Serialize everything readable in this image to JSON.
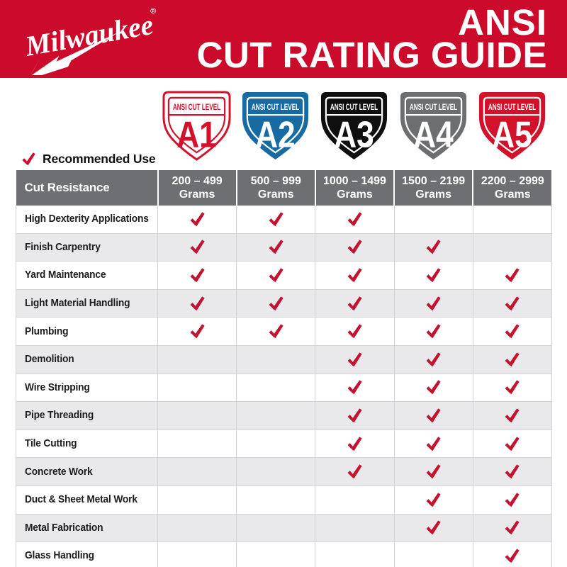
{
  "banner": {
    "brand": "Milwaukee",
    "registered_mark": "®",
    "title_line1": "ANSI",
    "title_line2": "CUT RATING GUIDE"
  },
  "shields": [
    {
      "level": "A1",
      "band": "ANSI CUT LEVEL",
      "style": "outline",
      "color": "#d2112b"
    },
    {
      "level": "A2",
      "band": "ANSI CUT LEVEL",
      "style": "filled",
      "color": "#186ba2"
    },
    {
      "level": "A3",
      "band": "ANSI CUT LEVEL",
      "style": "filled",
      "color": "#0f0f10"
    },
    {
      "level": "A4",
      "band": "ANSI CUT LEVEL",
      "style": "filled",
      "color": "#6d6e71"
    },
    {
      "level": "A5",
      "band": "ANSI CUT LEVEL",
      "style": "filled",
      "color": "#d2112b"
    }
  ],
  "legend": {
    "label": "Recommended Use"
  },
  "table": {
    "corner_header": "Cut Resistance",
    "columns": [
      {
        "range": "200 – 499",
        "unit": "Grams"
      },
      {
        "range": "500 – 999",
        "unit": "Grams"
      },
      {
        "range": "1000 – 1499",
        "unit": "Grams"
      },
      {
        "range": "1500 – 2199",
        "unit": "Grams"
      },
      {
        "range": "2200 – 2999",
        "unit": "Grams"
      }
    ],
    "rows": [
      {
        "label": "High Dexterity Applications",
        "checks": [
          true,
          true,
          true,
          false,
          false
        ]
      },
      {
        "label": "Finish Carpentry",
        "checks": [
          true,
          true,
          true,
          true,
          false
        ]
      },
      {
        "label": "Yard Maintenance",
        "checks": [
          true,
          true,
          true,
          true,
          true
        ]
      },
      {
        "label": "Light Material Handling",
        "checks": [
          true,
          true,
          true,
          true,
          true
        ]
      },
      {
        "label": "Plumbing",
        "checks": [
          true,
          true,
          true,
          true,
          true
        ]
      },
      {
        "label": "Demolition",
        "checks": [
          false,
          false,
          true,
          true,
          true
        ]
      },
      {
        "label": "Wire Stripping",
        "checks": [
          false,
          false,
          true,
          true,
          true
        ]
      },
      {
        "label": "Pipe Threading",
        "checks": [
          false,
          false,
          true,
          true,
          true
        ]
      },
      {
        "label": "Tile Cutting",
        "checks": [
          false,
          false,
          true,
          true,
          true
        ]
      },
      {
        "label": "Concrete Work",
        "checks": [
          false,
          false,
          true,
          true,
          true
        ]
      },
      {
        "label": "Duct & Sheet Metal Work",
        "checks": [
          false,
          false,
          false,
          true,
          true
        ]
      },
      {
        "label": "Metal Fabrication",
        "checks": [
          false,
          false,
          false,
          true,
          true
        ]
      },
      {
        "label": "Glass Handling",
        "checks": [
          false,
          false,
          false,
          false,
          true
        ]
      }
    ]
  },
  "colors": {
    "banner_red": "#cb0a2c",
    "shield_red": "#d2112b",
    "shield_blue": "#186ba2",
    "shield_black": "#0f0f10",
    "shield_gray": "#6d6e71",
    "header_gray": "#6e6f72",
    "row_alt": "#e9e9eb",
    "check_red": "#c41230",
    "grid_line": "#d4d4d6",
    "text_dark": "#1d1d1f"
  }
}
